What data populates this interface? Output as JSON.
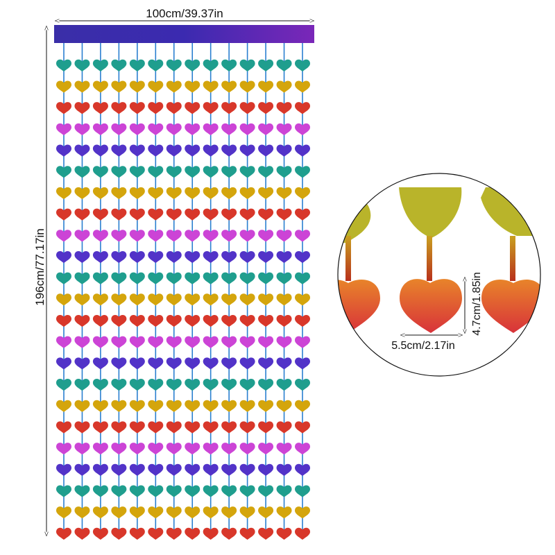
{
  "dimensions": {
    "width_label": "100cm/39.37in",
    "height_label": "196cm/77.17in",
    "heart_width_label": "5.5cm/2.17in",
    "heart_height_label": "4.7cm/1.85in"
  },
  "curtain": {
    "columns": 14,
    "rows": 23,
    "bar_color": "#4a2fa8",
    "string_color": "#2a7fd0",
    "heart_color_cycle": [
      "#1f9e8e",
      "#d4a50c",
      "#d8372a",
      "#cc44d6",
      "#5233c8"
    ]
  },
  "detail_view": {
    "top_heart_color": "#b9b42a",
    "bottom_heart_top_color": "#e8822a",
    "bottom_heart_bottom_color": "#d8323a"
  }
}
